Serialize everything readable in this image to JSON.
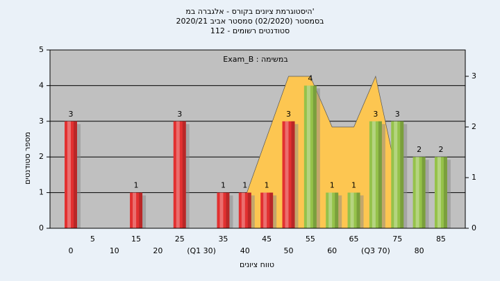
{
  "chart_data": {
    "type": "bar",
    "title_lines": [
      "היסטוגרמת ציונים בקורס - אלגברה במ'",
      "בסמסטר  (02/2020)  סמסטר אביב 2020/21",
      "סטודנטים רשומים - 112"
    ],
    "annotation": "Exam_B : במשימה",
    "xlabel": "טווח ציונים",
    "ylabel": "מספר סטודנטים",
    "categories": [
      "0",
      "5",
      "10",
      "15",
      "20",
      "25",
      "(Q1 30)",
      "35",
      "40",
      "45",
      "50",
      "55",
      "60",
      "65",
      "(Q3 70)",
      "75",
      "80",
      "85"
    ],
    "series": [
      {
        "type": "bar",
        "color": "#e23030",
        "values": [
          3,
          0,
          0,
          1,
          0,
          3,
          0,
          1,
          1,
          1,
          3,
          null,
          null,
          null,
          null,
          null,
          null,
          null
        ]
      },
      {
        "type": "bar",
        "color": "#95c24a",
        "values": [
          null,
          null,
          null,
          null,
          null,
          null,
          null,
          null,
          null,
          null,
          null,
          4,
          1,
          1,
          3,
          3,
          2,
          2
        ]
      },
      {
        "type": "area",
        "axis": "y2",
        "color": "#fdc651",
        "values": [
          null,
          null,
          null,
          null,
          null,
          null,
          null,
          null,
          0.6,
          1.8,
          3,
          3,
          2,
          2,
          3,
          1,
          null,
          null
        ]
      }
    ],
    "ylim": [
      0,
      5
    ],
    "yticks": [
      0,
      1,
      2,
      3,
      4,
      5
    ],
    "y2lim": [
      0,
      3.52
    ],
    "y2ticks": [
      0,
      1,
      2,
      3
    ],
    "grid": true
  }
}
